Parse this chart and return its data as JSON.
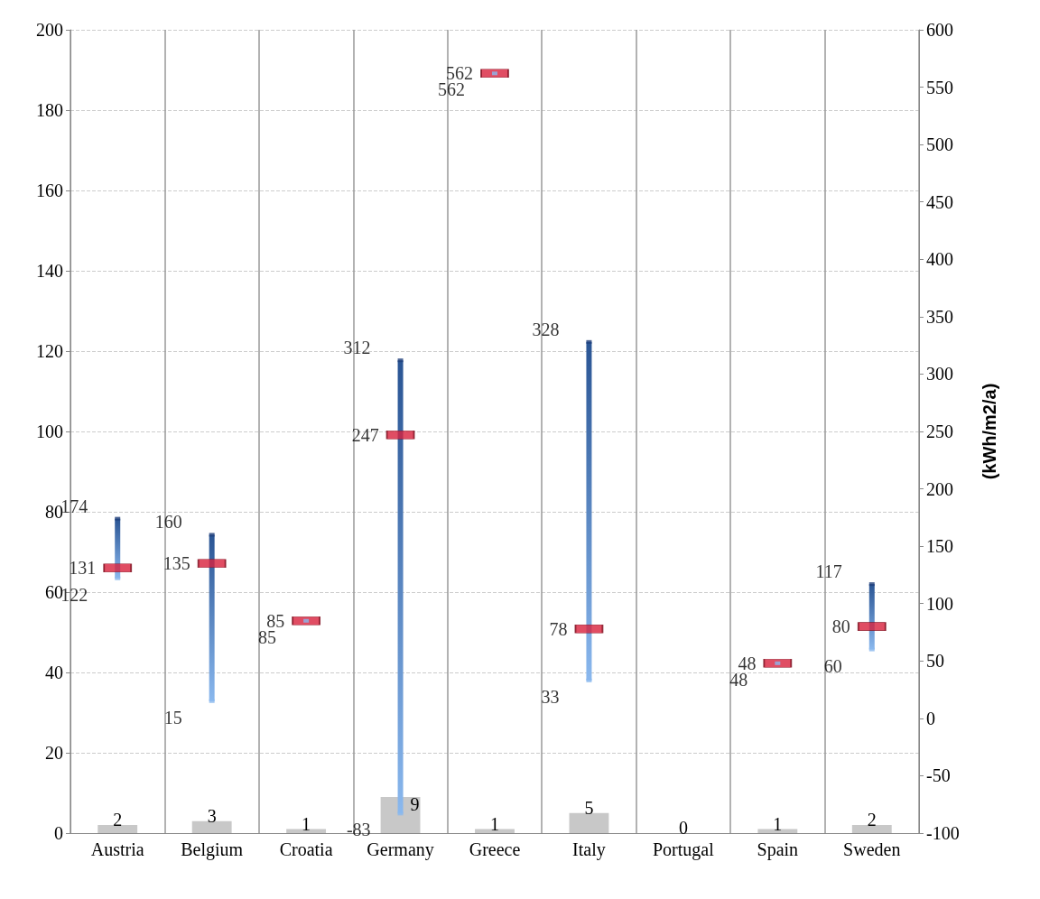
{
  "chart_data": {
    "type": "bar",
    "categories": [
      "Austria",
      "Belgium",
      "Croatia",
      "Germany",
      "Greece",
      "Italy",
      "Portugal",
      "Spain",
      "Sweden"
    ],
    "series": [
      {
        "color": "#c8c8c8",
        "values": [
          2,
          3,
          1,
          9,
          1,
          5,
          0,
          1,
          2
        ],
        "data_labels": true
      },
      {
        "type": "bar",
        "axis": "y2",
        "color": "#2a5594",
        "base": [
          122,
          15,
          null,
          -83,
          null,
          33,
          null,
          null,
          60
        ],
        "values": [
          52,
          145,
          null,
          395,
          null,
          295,
          null,
          null,
          57
        ]
      },
      {
        "type": "scatter",
        "axis": "y2",
        "color": "#d8203c",
        "marker": "square",
        "values": [
          131,
          135,
          85,
          247,
          562,
          78,
          null,
          48,
          80
        ],
        "data_labels": true
      },
      {
        "type": "scatter",
        "axis": "y2",
        "marker": "square",
        "color": "#1f3f7a",
        "values": [
          174,
          160,
          null,
          312,
          null,
          328,
          null,
          null,
          117
        ],
        "data_labels": true
      },
      {
        "type": "scatter",
        "axis": "y2",
        "marker": "square",
        "color": "#8ab8ee",
        "values": [
          122,
          15,
          85,
          -83,
          562,
          33,
          null,
          48,
          60
        ],
        "data_labels": true
      }
    ],
    "y2label": "(kWh/m2/a)",
    "ylim": [
      0,
      200
    ],
    "yticks": [
      0,
      20,
      40,
      60,
      80,
      100,
      120,
      140,
      160,
      180,
      200
    ],
    "y2lim": [
      -100,
      600
    ],
    "y2ticks": [
      -100,
      -50,
      0,
      50,
      100,
      150,
      200,
      250,
      300,
      350,
      400,
      450,
      500,
      550,
      600
    ],
    "grid": true
  }
}
